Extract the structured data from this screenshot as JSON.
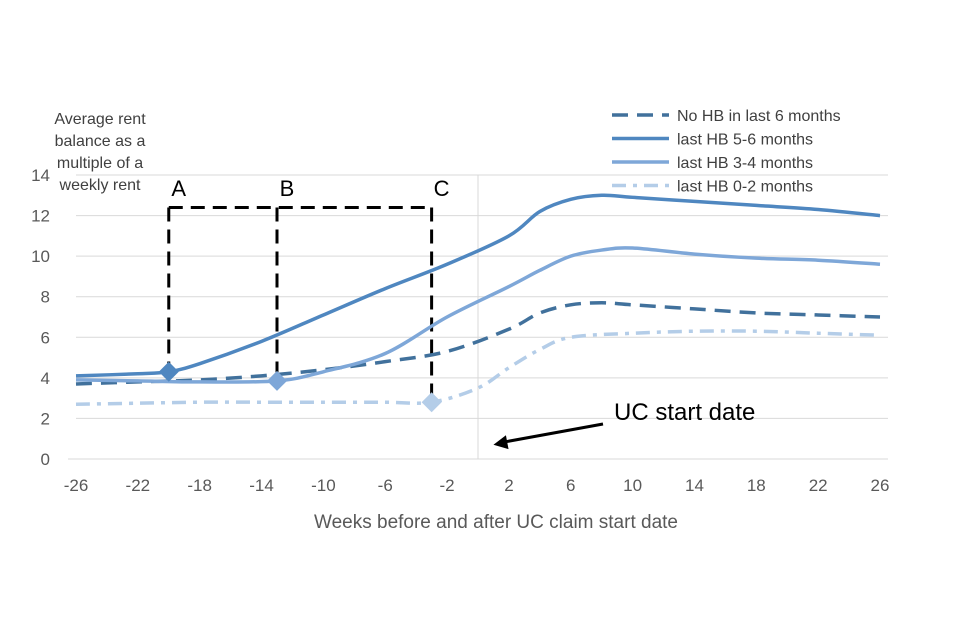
{
  "chart_data": {
    "type": "line",
    "ylabel_lines": [
      "Average rent",
      "balance as a",
      "multiple of a",
      "weekly rent"
    ],
    "xlabel": "Weeks before and after UC claim start date",
    "xlim": [
      -26,
      26
    ],
    "ylim": [
      0,
      14
    ],
    "x_ticks": [
      "-26",
      "-22",
      "-18",
      "-14",
      "-10",
      "-6",
      "-2",
      "2",
      "6",
      "10",
      "14",
      "18",
      "22",
      "26"
    ],
    "y_ticks": [
      "0",
      "2",
      "4",
      "6",
      "8",
      "10",
      "12",
      "14"
    ],
    "grid": "horizontal",
    "legend_position": "top-right",
    "series": [
      {
        "name": "No HB in last 6 months",
        "color": "#41719c",
        "style": "dashed",
        "points": [
          [
            -26,
            3.7
          ],
          [
            -22,
            3.8
          ],
          [
            -18,
            3.9
          ],
          [
            -14,
            4.1
          ],
          [
            -10,
            4.4
          ],
          [
            -6,
            4.8
          ],
          [
            -2,
            5.3
          ],
          [
            2,
            6.4
          ],
          [
            4,
            7.2
          ],
          [
            6,
            7.6
          ],
          [
            8,
            7.7
          ],
          [
            10,
            7.6
          ],
          [
            14,
            7.4
          ],
          [
            18,
            7.2
          ],
          [
            22,
            7.1
          ],
          [
            26,
            7.0
          ]
        ]
      },
      {
        "name": "last HB 5-6 months",
        "color": "#4f87c0",
        "style": "solid",
        "points": [
          [
            -26,
            4.1
          ],
          [
            -22,
            4.2
          ],
          [
            -20,
            4.3
          ],
          [
            -18,
            4.7
          ],
          [
            -14,
            5.8
          ],
          [
            -10,
            7.1
          ],
          [
            -6,
            8.4
          ],
          [
            -2,
            9.6
          ],
          [
            2,
            11.0
          ],
          [
            4,
            12.2
          ],
          [
            6,
            12.8
          ],
          [
            8,
            13.0
          ],
          [
            10,
            12.9
          ],
          [
            14,
            12.7
          ],
          [
            18,
            12.5
          ],
          [
            22,
            12.3
          ],
          [
            26,
            12.0
          ]
        ]
      },
      {
        "name": "last HB 3-4 months",
        "color": "#7ea7d8",
        "style": "solid",
        "points": [
          [
            -26,
            3.9
          ],
          [
            -22,
            3.85
          ],
          [
            -18,
            3.8
          ],
          [
            -13,
            3.85
          ],
          [
            -10,
            4.3
          ],
          [
            -6,
            5.2
          ],
          [
            -2,
            7.0
          ],
          [
            2,
            8.5
          ],
          [
            4,
            9.3
          ],
          [
            6,
            10.0
          ],
          [
            8,
            10.3
          ],
          [
            10,
            10.4
          ],
          [
            14,
            10.1
          ],
          [
            18,
            9.9
          ],
          [
            22,
            9.8
          ],
          [
            26,
            9.6
          ]
        ]
      },
      {
        "name": "last HB 0-2 months",
        "color": "#b4cde8",
        "style": "dashdot",
        "points": [
          [
            -26,
            2.7
          ],
          [
            -22,
            2.75
          ],
          [
            -18,
            2.8
          ],
          [
            -14,
            2.8
          ],
          [
            -10,
            2.8
          ],
          [
            -6,
            2.8
          ],
          [
            -3,
            2.8
          ],
          [
            0,
            3.5
          ],
          [
            2,
            4.5
          ],
          [
            4,
            5.4
          ],
          [
            6,
            6.0
          ],
          [
            10,
            6.2
          ],
          [
            14,
            6.3
          ],
          [
            18,
            6.3
          ],
          [
            22,
            6.2
          ],
          [
            26,
            6.1
          ]
        ]
      }
    ],
    "markers": [
      {
        "label": "A",
        "x": -20,
        "y": 4.3,
        "series": 1,
        "color": "#4f87c0"
      },
      {
        "label": "B",
        "x": -13,
        "y": 3.85,
        "series": 2,
        "color": "#7ea7d8"
      },
      {
        "label": "C",
        "x": -3,
        "y": 2.8,
        "series": 3,
        "color": "#b4cde8"
      }
    ],
    "bracket_y": 12.4,
    "annotation": {
      "text": "UC start date",
      "arrow_to": [
        1,
        0.7
      ]
    }
  }
}
